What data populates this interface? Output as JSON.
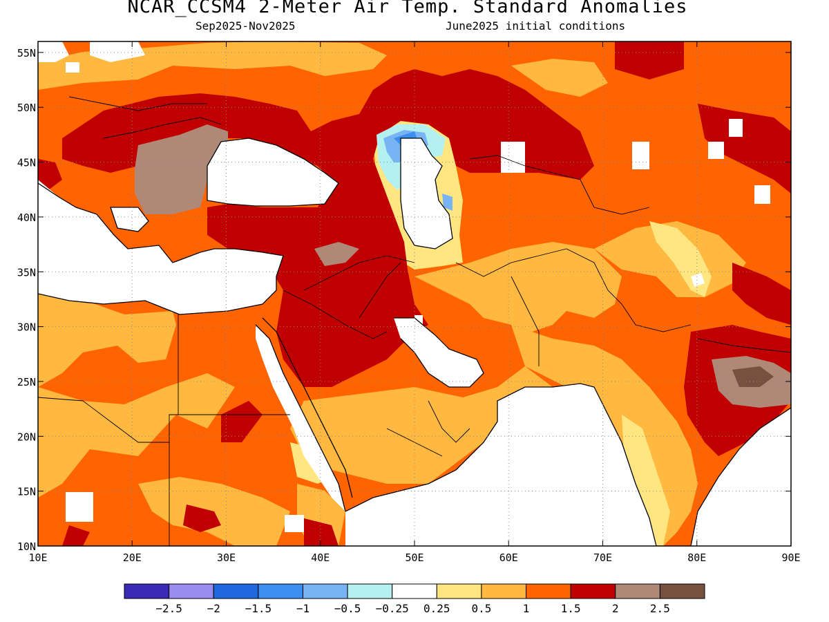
{
  "header": {
    "title": "NCAR_CCSM4 2-Meter Air Temp. Standard Anomalies",
    "period": "Sep2025-Nov2025",
    "init": "June2025 initial conditions"
  },
  "map": {
    "lon_range": [
      10,
      90
    ],
    "lat_range": [
      10,
      56
    ],
    "lat_ticks": [
      {
        "value": 55,
        "label": "55N"
      },
      {
        "value": 50,
        "label": "50N"
      },
      {
        "value": 45,
        "label": "45N"
      },
      {
        "value": 40,
        "label": "40N"
      },
      {
        "value": 35,
        "label": "35N"
      },
      {
        "value": 30,
        "label": "30N"
      },
      {
        "value": 25,
        "label": "25N"
      },
      {
        "value": 20,
        "label": "20N"
      },
      {
        "value": 15,
        "label": "15N"
      },
      {
        "value": 10,
        "label": "10N"
      }
    ],
    "lon_ticks": [
      {
        "value": 10,
        "label": "10E"
      },
      {
        "value": 20,
        "label": "20E"
      },
      {
        "value": 30,
        "label": "30E"
      },
      {
        "value": 40,
        "label": "40E"
      },
      {
        "value": 50,
        "label": "50E"
      },
      {
        "value": 60,
        "label": "60E"
      },
      {
        "value": 70,
        "label": "70E"
      },
      {
        "value": 80,
        "label": "80E"
      },
      {
        "value": 90,
        "label": "90E"
      }
    ],
    "grid": "dotted",
    "ocean_color": "#ffffff"
  },
  "colorbar": {
    "colors": [
      "#3a2ab4",
      "#9a8cf0",
      "#2068e0",
      "#3c8ef0",
      "#78b4f4",
      "#b4f0f0",
      "#ffffff",
      "#ffe680",
      "#ffb840",
      "#ff6400",
      "#c00000",
      "#b08878",
      "#785040"
    ],
    "labels": [
      "-2.5",
      "-2",
      "-1.5",
      "-1",
      "-0.5",
      "-0.25",
      "0.25",
      "0.5",
      "1",
      "1.5",
      "2",
      "2.5"
    ]
  },
  "colors": {
    "white": "#ffffff",
    "light_yellow": "#ffe680",
    "light_orange": "#ffb840",
    "orange": "#ff6400",
    "red": "#c00000",
    "brown": "#b08878",
    "dark_brown": "#785040",
    "cyan": "#b4f0f0",
    "light_blue": "#78b4f4",
    "blue": "#3c8ef0"
  }
}
